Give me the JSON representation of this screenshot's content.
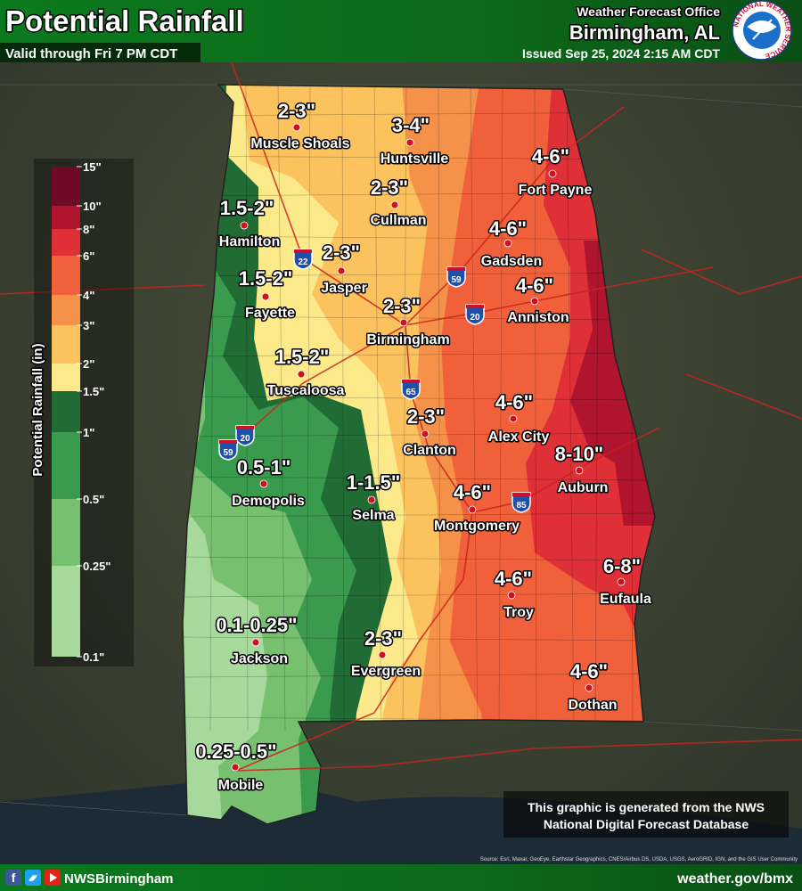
{
  "header": {
    "title": "Potential Rainfall",
    "subtitle": "Valid through Fri 7 PM CDT",
    "office": "Weather Forecast Office",
    "location": "Birmingham, AL",
    "issued": "Issued Sep 25, 2024 2:15 AM CDT",
    "logo_text": "NATIONAL WEATHER SERVICE"
  },
  "legend": {
    "title": "Potential Rainfall (in)",
    "labels": [
      "15\"",
      "10\"",
      "8\"",
      "6\"",
      "4\"",
      "3\"",
      "2\"",
      "1.5\"",
      "1\"",
      "0.5\"",
      "0.25\"",
      "0.1\""
    ],
    "colors": [
      "#6e0a25",
      "#b0142e",
      "#df2f37",
      "#f0603a",
      "#f59148",
      "#fbc25e",
      "#fbe98a",
      "#216b35",
      "#3a9a4e",
      "#76c070",
      "#a7d99c"
    ]
  },
  "cities": [
    {
      "name": "Muscle Shoals",
      "amount": "2-3\""
    },
    {
      "name": "Huntsville",
      "amount": "3-4\""
    },
    {
      "name": "Fort Payne",
      "amount": "4-6\""
    },
    {
      "name": "Cullman",
      "amount": "2-3\""
    },
    {
      "name": "Hamilton",
      "amount": "1.5-2\""
    },
    {
      "name": "Gadsden",
      "amount": "4-6\""
    },
    {
      "name": "Jasper",
      "amount": "2-3\""
    },
    {
      "name": "Fayette",
      "amount": "1.5-2\""
    },
    {
      "name": "Anniston",
      "amount": "4-6\""
    },
    {
      "name": "Birmingham",
      "amount": "2-3\""
    },
    {
      "name": "Tuscaloosa",
      "amount": "1.5-2\""
    },
    {
      "name": "Alex City",
      "amount": "4-6\""
    },
    {
      "name": "Clanton",
      "amount": "2-3\""
    },
    {
      "name": "Auburn",
      "amount": "8-10\""
    },
    {
      "name": "Demopolis",
      "amount": "0.5-1\""
    },
    {
      "name": "Selma",
      "amount": "1-1.5\""
    },
    {
      "name": "Montgomery",
      "amount": "4-6\""
    },
    {
      "name": "Troy",
      "amount": "4-6\""
    },
    {
      "name": "Eufaula",
      "amount": "6-8\""
    },
    {
      "name": "Jackson",
      "amount": "0.1-0.25\""
    },
    {
      "name": "Evergreen",
      "amount": "2-3\""
    },
    {
      "name": "Dothan",
      "amount": "4-6\""
    },
    {
      "name": "Mobile",
      "amount": "0.25-0.5\""
    }
  ],
  "interstates": [
    "22",
    "59",
    "20",
    "65",
    "20",
    "59",
    "85"
  ],
  "note": [
    "This graphic is generated from the NWS",
    "National Digital Forecast Database"
  ],
  "source": "Source: Esri, Maxar, GeoEye, Earthstar Geographics, CNES/Airbus DS, USDA, USGS, AeroGRID, IGN, and the GIS User Community",
  "footer": {
    "handle": "NWSBirmingham",
    "url": "weather.gov/bmx"
  }
}
